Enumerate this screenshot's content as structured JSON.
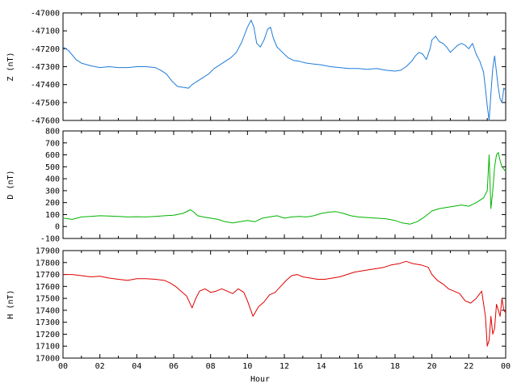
{
  "chart_data": [
    {
      "type": "line",
      "ylabel": "Z (nT)",
      "ylim": [
        -47600,
        -47000
      ],
      "yticks": [
        -47000,
        -47100,
        -47200,
        -47300,
        -47400,
        -47500,
        -47600
      ],
      "xlim": [
        0,
        24
      ],
      "color": "#1f7bd8",
      "series": [
        {
          "x": [
            0,
            0.3,
            0.7,
            1.0,
            1.5,
            2.0,
            2.5,
            3.0,
            3.5,
            4.0,
            4.5,
            5.0,
            5.3,
            5.6,
            5.9,
            6.2,
            6.5,
            6.8,
            7.0,
            7.3,
            7.6,
            7.9,
            8.2,
            8.5,
            8.8,
            9.1,
            9.4,
            9.7,
            10.0,
            10.2,
            10.35,
            10.5,
            10.7,
            10.9,
            11.1,
            11.25,
            11.4,
            11.6,
            11.9,
            12.2,
            12.5,
            12.8,
            13.2,
            13.6,
            14.0,
            14.5,
            15.0,
            15.5,
            16.0,
            16.5,
            17.0,
            17.5,
            18.0,
            18.3,
            18.6,
            18.9,
            19.1,
            19.3,
            19.5,
            19.7,
            19.9,
            20.0,
            20.2,
            20.4,
            20.6,
            20.8,
            21.0,
            21.2,
            21.4,
            21.6,
            21.8,
            22.0,
            22.2,
            22.4,
            22.6,
            22.8,
            22.9,
            23.0,
            23.1,
            23.2,
            23.3,
            23.4,
            23.5,
            23.6,
            23.7,
            23.8,
            23.9,
            24.0
          ],
          "y": [
            -47190,
            -47210,
            -47260,
            -47280,
            -47295,
            -47305,
            -47300,
            -47305,
            -47305,
            -47300,
            -47300,
            -47305,
            -47320,
            -47340,
            -47380,
            -47410,
            -47415,
            -47420,
            -47400,
            -47380,
            -47360,
            -47340,
            -47310,
            -47290,
            -47270,
            -47250,
            -47220,
            -47160,
            -47080,
            -47040,
            -47080,
            -47170,
            -47190,
            -47150,
            -47090,
            -47080,
            -47140,
            -47190,
            -47220,
            -47250,
            -47265,
            -47270,
            -47280,
            -47285,
            -47290,
            -47300,
            -47305,
            -47310,
            -47310,
            -47315,
            -47310,
            -47320,
            -47325,
            -47320,
            -47300,
            -47270,
            -47240,
            -47220,
            -47230,
            -47260,
            -47200,
            -47150,
            -47130,
            -47160,
            -47170,
            -47190,
            -47220,
            -47200,
            -47180,
            -47170,
            -47180,
            -47200,
            -47170,
            -47230,
            -47270,
            -47330,
            -47420,
            -47520,
            -47600,
            -47450,
            -47310,
            -47240,
            -47330,
            -47420,
            -47480,
            -47500,
            -47420,
            -47430
          ]
        }
      ]
    },
    {
      "type": "line",
      "ylabel": "D (nT)",
      "ylim": [
        -100,
        800
      ],
      "yticks": [
        800,
        700,
        600,
        500,
        400,
        300,
        200,
        100,
        0,
        -100
      ],
      "xlim": [
        0,
        24
      ],
      "color": "#00b400",
      "series": [
        {
          "x": [
            0,
            0.5,
            1.0,
            1.5,
            2.0,
            2.5,
            3.0,
            3.5,
            4.0,
            4.5,
            5.0,
            5.5,
            6.0,
            6.5,
            6.9,
            7.1,
            7.3,
            7.6,
            8.0,
            8.4,
            8.8,
            9.2,
            9.6,
            10.0,
            10.4,
            10.8,
            11.2,
            11.6,
            12.0,
            12.4,
            12.8,
            13.2,
            13.6,
            14.0,
            14.4,
            14.8,
            15.2,
            15.6,
            16.0,
            16.5,
            17.0,
            17.5,
            18.0,
            18.4,
            18.8,
            19.2,
            19.6,
            20.0,
            20.4,
            20.8,
            21.2,
            21.6,
            22.0,
            22.4,
            22.8,
            23.0,
            23.1,
            23.2,
            23.3,
            23.4,
            23.5,
            23.6,
            23.7,
            23.8,
            23.9,
            24.0
          ],
          "y": [
            70,
            60,
            80,
            85,
            90,
            88,
            85,
            80,
            82,
            80,
            85,
            90,
            95,
            110,
            140,
            120,
            90,
            80,
            70,
            60,
            40,
            30,
            40,
            50,
            40,
            70,
            80,
            90,
            70,
            80,
            85,
            80,
            90,
            110,
            120,
            125,
            110,
            90,
            80,
            75,
            70,
            65,
            50,
            30,
            20,
            40,
            80,
            130,
            150,
            160,
            170,
            180,
            170,
            200,
            240,
            300,
            600,
            150,
            300,
            500,
            600,
            620,
            550,
            500,
            480,
            460
          ]
        }
      ]
    },
    {
      "type": "line",
      "ylabel": "H (nT)",
      "ylim": [
        17000,
        17900
      ],
      "yticks": [
        17900,
        17800,
        17700,
        17600,
        17500,
        17400,
        17300,
        17200,
        17100,
        17000
      ],
      "xlim": [
        0,
        24
      ],
      "color": "#e00000",
      "xlabel": "Hour",
      "xticks": [
        "00",
        "02",
        "04",
        "06",
        "08",
        "10",
        "12",
        "14",
        "16",
        "18",
        "20",
        "22",
        "00"
      ],
      "series": [
        {
          "x": [
            0,
            0.5,
            1.0,
            1.5,
            2.0,
            2.5,
            3.0,
            3.5,
            4.0,
            4.5,
            5.0,
            5.5,
            5.8,
            6.1,
            6.4,
            6.7,
            7.0,
            7.2,
            7.4,
            7.7,
            8.0,
            8.3,
            8.6,
            8.9,
            9.2,
            9.5,
            9.8,
            10.0,
            10.3,
            10.6,
            10.9,
            11.2,
            11.5,
            11.8,
            12.1,
            12.4,
            12.7,
            13.0,
            13.4,
            13.8,
            14.2,
            14.6,
            15.0,
            15.4,
            15.8,
            16.2,
            16.6,
            17.0,
            17.4,
            17.8,
            18.2,
            18.6,
            19.0,
            19.4,
            19.8,
            20.0,
            20.3,
            20.6,
            20.9,
            21.2,
            21.5,
            21.8,
            22.1,
            22.4,
            22.7,
            22.9,
            23.0,
            23.1,
            23.2,
            23.3,
            23.4,
            23.5,
            23.6,
            23.7,
            23.8,
            23.9,
            24.0
          ],
          "y": [
            17700,
            17700,
            17690,
            17680,
            17685,
            17670,
            17660,
            17650,
            17665,
            17665,
            17660,
            17650,
            17630,
            17600,
            17560,
            17520,
            17420,
            17500,
            17560,
            17580,
            17550,
            17560,
            17580,
            17560,
            17540,
            17580,
            17550,
            17480,
            17350,
            17430,
            17470,
            17530,
            17550,
            17600,
            17650,
            17690,
            17700,
            17680,
            17670,
            17660,
            17660,
            17670,
            17680,
            17700,
            17720,
            17730,
            17740,
            17750,
            17760,
            17780,
            17790,
            17810,
            17790,
            17780,
            17760,
            17700,
            17650,
            17620,
            17580,
            17560,
            17540,
            17480,
            17460,
            17500,
            17560,
            17350,
            17100,
            17150,
            17350,
            17200,
            17250,
            17450,
            17400,
            17350,
            17500,
            17400,
            17380
          ]
        }
      ]
    }
  ]
}
